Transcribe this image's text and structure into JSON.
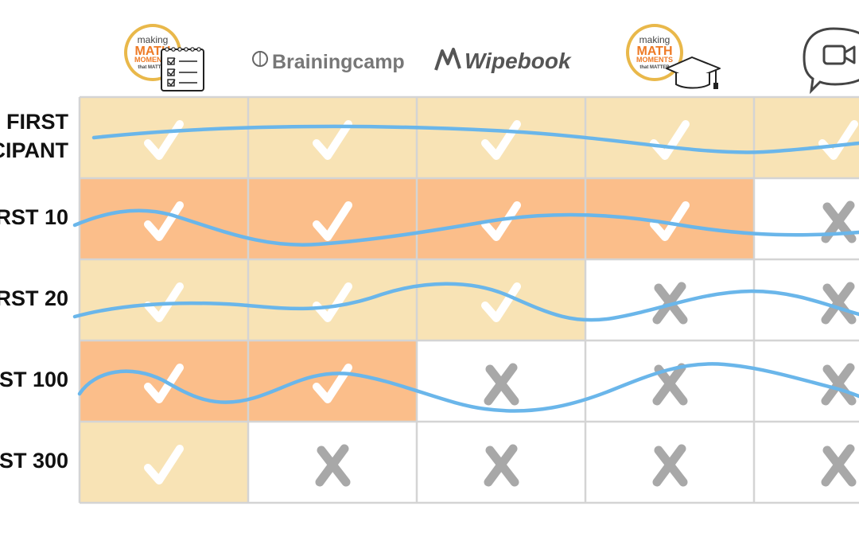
{
  "columns": [
    {
      "name": "Making Math Moments that Matter (plans)",
      "icon": "making-math-moments-checklist-logo",
      "logo_lines": [
        "making",
        "MATH",
        "MOMENTS",
        "that MATTER"
      ]
    },
    {
      "name": "Brainingcamp",
      "icon": "brainingcamp-logo",
      "brand_text": "Brainingcamp"
    },
    {
      "name": "Wipebook",
      "icon": "wipebook-logo",
      "brand_text": "Wipebook"
    },
    {
      "name": "Making Math Moments that Matter (academy)",
      "icon": "making-math-moments-grad-cap-logo",
      "logo_lines": [
        "making",
        "MATH",
        "MOMENTS",
        "that MATTER"
      ]
    },
    {
      "name": "Video call",
      "icon": "video-chat-bubble-icon"
    }
  ],
  "rows": [
    {
      "label_lines": [
        "FIRST",
        "CIPANT"
      ],
      "marks": [
        "check",
        "check",
        "check",
        "check",
        "check"
      ],
      "fill": [
        "light",
        "light",
        "light",
        "light",
        "light"
      ]
    },
    {
      "label_lines": [
        "RST 10"
      ],
      "marks": [
        "check",
        "check",
        "check",
        "check",
        "x"
      ],
      "fill": [
        "dark",
        "dark",
        "dark",
        "dark",
        "none"
      ]
    },
    {
      "label_lines": [
        "RST 20"
      ],
      "marks": [
        "check",
        "check",
        "check",
        "x",
        "x"
      ],
      "fill": [
        "light",
        "light",
        "light",
        "none",
        "none"
      ]
    },
    {
      "label_lines": [
        "ST 100"
      ],
      "marks": [
        "check",
        "check",
        "x",
        "x",
        "x"
      ],
      "fill": [
        "dark",
        "dark",
        "none",
        "none",
        "none"
      ]
    },
    {
      "label_lines": [
        "ST 300"
      ],
      "marks": [
        "check",
        "x",
        "x",
        "x",
        "x"
      ],
      "fill": [
        "light",
        "none",
        "none",
        "none",
        "none"
      ]
    }
  ],
  "colors": {
    "light_fill": "#F8E3B5",
    "dark_fill": "#FBBE8A",
    "empty_fill": "#FFFFFF",
    "grid_line": "#D4D4D4",
    "check_mark": "#FFFFFF",
    "x_mark": "#A8A8A8",
    "wave": "#6AB6EA",
    "logo_gold": "#E9B84A",
    "logo_orange": "#EE7A25",
    "brand_gray": "#777777"
  }
}
